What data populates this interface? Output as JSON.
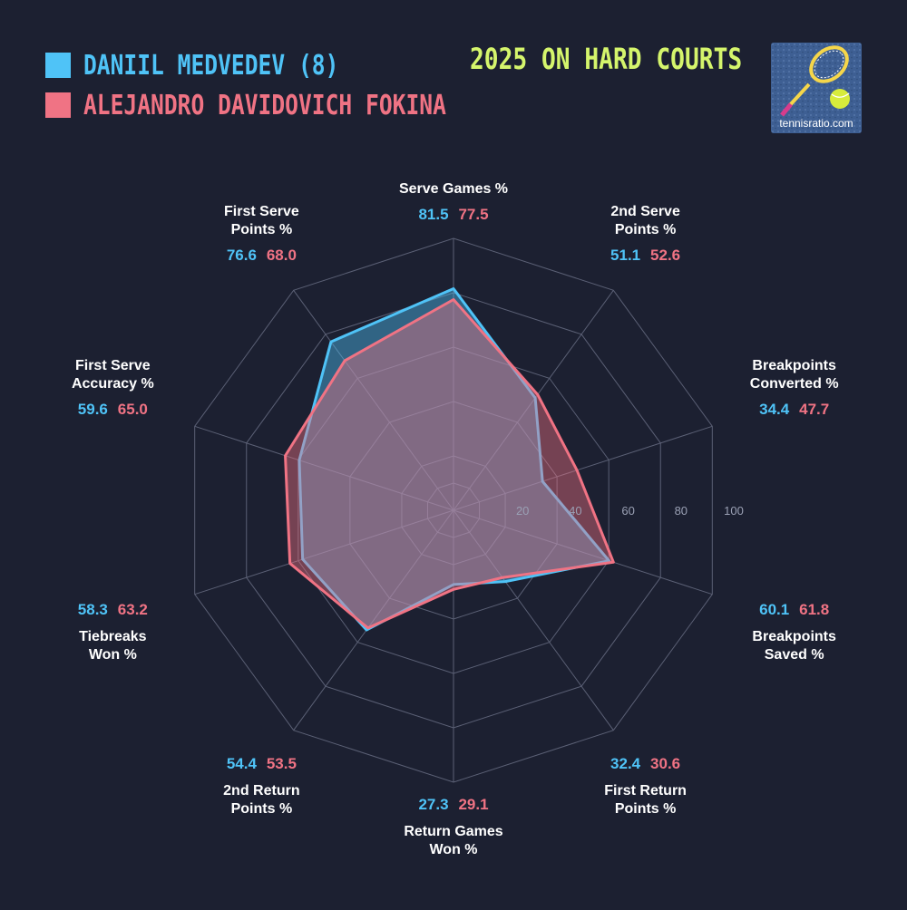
{
  "players": [
    {
      "name": "DANIIL MEDVEDEV (8)",
      "color": "#4fc3f7"
    },
    {
      "name": "ALEJANDRO DAVIDOVICH FOKINA",
      "color": "#f07384"
    }
  ],
  "subtitle": "2025 ON HARD COURTS",
  "logo_text": "tennisratio.com",
  "chart_data": {
    "type": "radar",
    "rlim": [
      0,
      100
    ],
    "ticks": [
      20,
      40,
      60,
      80,
      100
    ],
    "categories": [
      [
        "Serve Games %"
      ],
      [
        "2nd Serve",
        "Points %"
      ],
      [
        "Breakpoints",
        "Converted %"
      ],
      [
        "Breakpoints",
        "Saved %"
      ],
      [
        "First Return",
        "Points %"
      ],
      [
        "Return Games",
        "Won %"
      ],
      [
        "2nd Return",
        "Points %"
      ],
      [
        "Tiebreaks",
        "Won %"
      ],
      [
        "First Serve",
        "Accuracy %"
      ],
      [
        "First Serve",
        "Points %"
      ]
    ],
    "series": [
      {
        "name": "DANIIL MEDVEDEV (8)",
        "values": [
          81.5,
          51.1,
          34.4,
          60.1,
          32.4,
          27.3,
          54.4,
          58.3,
          59.6,
          76.6
        ]
      },
      {
        "name": "ALEJANDRO DAVIDOVICH FOKINA",
        "values": [
          77.5,
          52.6,
          47.7,
          61.8,
          30.6,
          29.1,
          53.5,
          63.2,
          65.0,
          68.0
        ]
      }
    ]
  }
}
